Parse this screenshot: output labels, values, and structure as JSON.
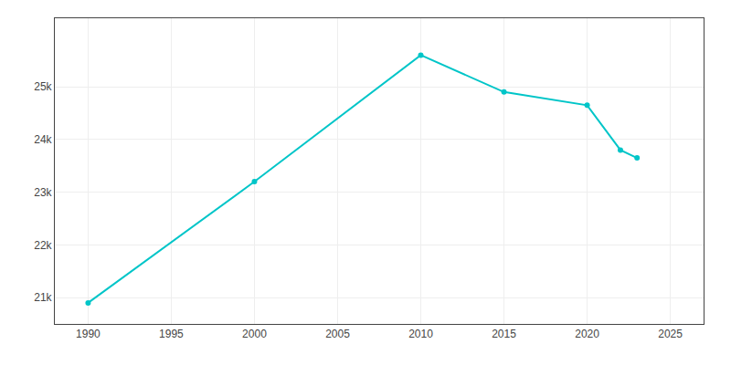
{
  "chart_data": {
    "type": "line",
    "x": [
      1990,
      2000,
      2010,
      2015,
      2020,
      2022,
      2023
    ],
    "values": [
      20900,
      23200,
      25600,
      24900,
      24650,
      23800,
      23650
    ],
    "color": "#00C5C8",
    "marker": "circle",
    "line_style": "solid",
    "xlim": [
      1988,
      2027
    ],
    "ylim": [
      20500,
      26300
    ],
    "xticks": [
      1990,
      1995,
      2000,
      2005,
      2010,
      2015,
      2020,
      2025
    ],
    "yticks": [
      {
        "value": 21000,
        "label": "21k"
      },
      {
        "value": 22000,
        "label": "22k"
      },
      {
        "value": 23000,
        "label": "23k"
      },
      {
        "value": 24000,
        "label": "24k"
      },
      {
        "value": 25000,
        "label": "25k"
      }
    ],
    "grid": true
  }
}
